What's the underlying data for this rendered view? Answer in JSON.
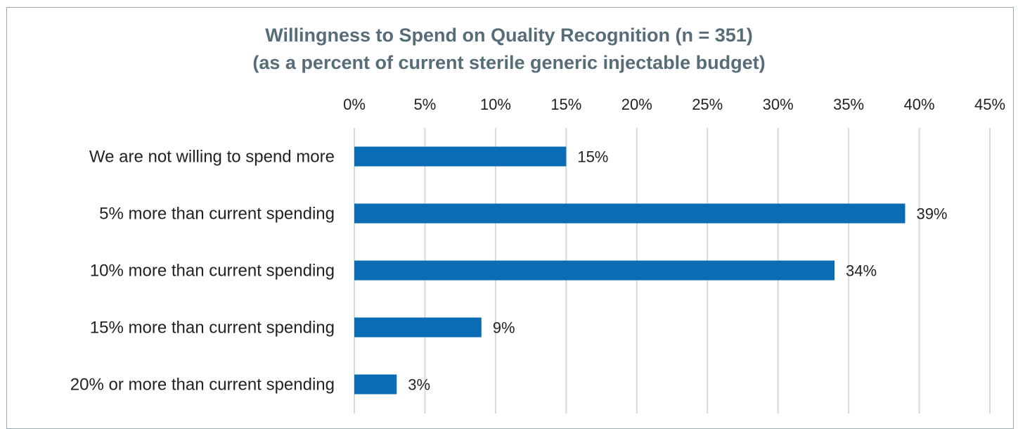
{
  "chart_data": {
    "type": "bar",
    "orientation": "horizontal",
    "title": "Willingness to Spend on Quality Recognition (n = 351)",
    "subtitle": "(as a percent of current sterile generic injectable budget)",
    "categories": [
      "We are not willing to spend more",
      "5% more than current spending",
      "10% more than current spending",
      "15% more than current spending",
      "20% or more than current spending"
    ],
    "values": [
      15,
      39,
      34,
      9,
      3
    ],
    "data_labels": [
      "15%",
      "39%",
      "34%",
      "9%",
      "3%"
    ],
    "xlim": [
      0,
      45
    ],
    "x_ticks": [
      0,
      5,
      10,
      15,
      20,
      25,
      30,
      35,
      40,
      45
    ],
    "x_tick_labels": [
      "0%",
      "5%",
      "10%",
      "15%",
      "20%",
      "25%",
      "30%",
      "35%",
      "40%",
      "45%"
    ],
    "x_axis_position": "top",
    "grid": true,
    "legend": "none",
    "bar_color": "#0a6db3",
    "grid_color": "#d9d9d9",
    "title_color": "#566d78"
  }
}
